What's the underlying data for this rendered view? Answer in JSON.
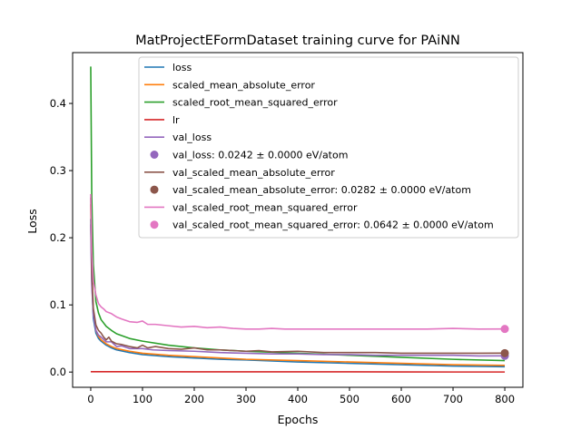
{
  "chart_data": {
    "type": "line",
    "title": "MatProjectEFormDataset training curve for PAiNN",
    "xlabel": "Epochs",
    "ylabel": "Loss",
    "xlim": [
      -35,
      835
    ],
    "ylim": [
      -0.0227,
      0.4757
    ],
    "xticks": [
      0,
      100,
      200,
      300,
      400,
      500,
      600,
      700,
      800
    ],
    "yticks": [
      0.0,
      0.1,
      0.2,
      0.3,
      0.4
    ],
    "xtick_labels": [
      "0",
      "100",
      "200",
      "300",
      "400",
      "500",
      "600",
      "700",
      "800"
    ],
    "ytick_labels": [
      "0.0",
      "0.1",
      "0.2",
      "0.3",
      "0.4"
    ],
    "grid": false,
    "legend_location": "top-right",
    "series": [
      {
        "name": "loss",
        "kind": "line",
        "color": "#1f77b4",
        "x": [
          0,
          2,
          5,
          10,
          15,
          20,
          30,
          40,
          50,
          75,
          100,
          150,
          200,
          250,
          300,
          400,
          500,
          600,
          700,
          800
        ],
        "y": [
          0.228,
          0.14,
          0.08,
          0.058,
          0.05,
          0.046,
          0.04,
          0.036,
          0.033,
          0.029,
          0.026,
          0.023,
          0.021,
          0.019,
          0.018,
          0.015,
          0.013,
          0.011,
          0.009,
          0.008
        ]
      },
      {
        "name": "scaled_mean_absolute_error",
        "kind": "line",
        "color": "#ff7f0e",
        "x": [
          0,
          2,
          5,
          10,
          15,
          20,
          30,
          40,
          50,
          75,
          100,
          150,
          200,
          250,
          300,
          400,
          500,
          600,
          700,
          800
        ],
        "y": [
          0.25,
          0.15,
          0.09,
          0.062,
          0.053,
          0.048,
          0.042,
          0.038,
          0.035,
          0.031,
          0.028,
          0.025,
          0.023,
          0.021,
          0.019,
          0.017,
          0.015,
          0.013,
          0.011,
          0.01
        ]
      },
      {
        "name": "scaled_root_mean_squared_error",
        "kind": "line",
        "color": "#2ca02c",
        "x": [
          0,
          2,
          5,
          10,
          15,
          20,
          30,
          40,
          50,
          75,
          100,
          150,
          200,
          250,
          300,
          400,
          500,
          600,
          700,
          800
        ],
        "y": [
          0.455,
          0.26,
          0.16,
          0.105,
          0.088,
          0.078,
          0.068,
          0.062,
          0.057,
          0.05,
          0.046,
          0.04,
          0.036,
          0.033,
          0.031,
          0.028,
          0.025,
          0.022,
          0.019,
          0.017
        ]
      },
      {
        "name": "lr",
        "kind": "line",
        "color": "#d62728",
        "x": [
          0,
          100,
          200,
          300,
          400,
          500,
          600,
          700,
          800
        ],
        "y": [
          0.0005,
          0.0005,
          0.0004,
          0.0004,
          0.0003,
          0.0003,
          0.0002,
          0.0001,
          0.0001
        ]
      },
      {
        "name": "val_loss",
        "kind": "line",
        "color": "#9467bd",
        "x": [
          0,
          2,
          5,
          10,
          15,
          20,
          30,
          40,
          50,
          60,
          75,
          100,
          120,
          150,
          200,
          250,
          300,
          350,
          400,
          450,
          500,
          550,
          600,
          650,
          700,
          750,
          800
        ],
        "y": [
          0.22,
          0.13,
          0.085,
          0.062,
          0.055,
          0.052,
          0.045,
          0.045,
          0.038,
          0.039,
          0.035,
          0.035,
          0.033,
          0.032,
          0.031,
          0.029,
          0.028,
          0.027,
          0.027,
          0.026,
          0.026,
          0.025,
          0.025,
          0.025,
          0.025,
          0.024,
          0.0242
        ]
      },
      {
        "name": "val_loss: 0.0242 ± 0.0000 eV/atom",
        "kind": "point",
        "color": "#9467bd",
        "x": [
          800
        ],
        "y": [
          0.0242
        ]
      },
      {
        "name": "val_scaled_mean_absolute_error",
        "kind": "line",
        "color": "#8c564b",
        "x": [
          0,
          2,
          5,
          10,
          15,
          20,
          25,
          30,
          35,
          40,
          50,
          60,
          75,
          90,
          100,
          110,
          125,
          150,
          175,
          200,
          225,
          250,
          275,
          300,
          325,
          350,
          400,
          450,
          500,
          550,
          600,
          650,
          700,
          750,
          800
        ],
        "y": [
          0.26,
          0.15,
          0.095,
          0.07,
          0.062,
          0.058,
          0.052,
          0.048,
          0.052,
          0.046,
          0.042,
          0.041,
          0.038,
          0.036,
          0.04,
          0.036,
          0.038,
          0.035,
          0.034,
          0.036,
          0.033,
          0.033,
          0.032,
          0.031,
          0.032,
          0.03,
          0.031,
          0.029,
          0.029,
          0.029,
          0.028,
          0.028,
          0.028,
          0.028,
          0.0282
        ]
      },
      {
        "name": "val_scaled_mean_absolute_error: 0.0282 ± 0.0000 eV/atom",
        "kind": "point",
        "color": "#8c564b",
        "x": [
          800
        ],
        "y": [
          0.0282
        ]
      },
      {
        "name": "val_scaled_root_mean_squared_error",
        "kind": "line",
        "color": "#e377c2",
        "x": [
          0,
          2,
          5,
          10,
          15,
          20,
          25,
          30,
          40,
          50,
          60,
          75,
          90,
          100,
          110,
          125,
          150,
          175,
          200,
          225,
          250,
          275,
          300,
          325,
          350,
          375,
          400,
          450,
          500,
          550,
          600,
          650,
          700,
          750,
          800
        ],
        "y": [
          0.265,
          0.18,
          0.135,
          0.115,
          0.102,
          0.097,
          0.094,
          0.09,
          0.087,
          0.082,
          0.079,
          0.075,
          0.074,
          0.076,
          0.071,
          0.071,
          0.069,
          0.067,
          0.068,
          0.066,
          0.067,
          0.065,
          0.064,
          0.064,
          0.065,
          0.064,
          0.064,
          0.064,
          0.064,
          0.064,
          0.064,
          0.064,
          0.065,
          0.064,
          0.0642
        ]
      },
      {
        "name": "val_scaled_root_mean_squared_error: 0.0642 ± 0.0000 eV/atom",
        "kind": "point",
        "color": "#e377c2",
        "x": [
          800
        ],
        "y": [
          0.0642
        ]
      }
    ]
  }
}
